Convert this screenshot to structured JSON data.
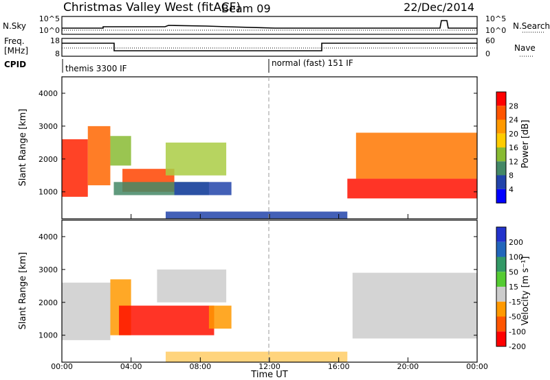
{
  "header": {
    "title": "Christmas Valley West (fitACF)",
    "beam": "Beam 09",
    "date": "22/Dec/2014"
  },
  "sky_panel": {
    "left_label": "N.Sky",
    "left_ticks": [
      "10^5",
      "10^0"
    ],
    "right_label": "N.Search",
    "right_ticks": [
      "10^5",
      "10^0"
    ]
  },
  "freq_panel": {
    "left_label_line1": "Freq.",
    "left_label_line2": "[MHz]",
    "left_ticks": [
      "18",
      "8"
    ],
    "right_label": "Nave",
    "right_ticks": [
      "60",
      "0"
    ]
  },
  "cpid_panel": {
    "label": "CPID",
    "modes": [
      {
        "name": "themis 3300 IF",
        "start_hour": 0
      },
      {
        "name": "normal (fast) 151 IF",
        "start_hour": 12
      }
    ]
  },
  "chart_data": [
    {
      "type": "heatmap",
      "name": "power",
      "ylabel": "Slant Range [km]",
      "ylim": [
        180,
        4500
      ],
      "yticks": [
        "1000",
        "2000",
        "3000",
        "4000"
      ],
      "xlim_hours": [
        0,
        24
      ],
      "colorbar": {
        "label": "Power [dB]",
        "ticks": [
          "28",
          "24",
          "20",
          "16",
          "12",
          "8",
          "4"
        ],
        "colors": [
          "#ff0000",
          "#ff5500",
          "#ff9900",
          "#ffcc00",
          "#88bb33",
          "#448866",
          "#2244aa",
          "#0000ff"
        ]
      },
      "regions": [
        {
          "t": [
            0.0,
            1.5
          ],
          "r": [
            850,
            2600
          ],
          "color": "#ff2200"
        },
        {
          "t": [
            1.5,
            2.8
          ],
          "r": [
            1200,
            3000
          ],
          "color": "#ff6600"
        },
        {
          "t": [
            2.8,
            4.0
          ],
          "r": [
            1800,
            2700
          ],
          "color": "#88bb33"
        },
        {
          "t": [
            3.5,
            6.5
          ],
          "r": [
            1000,
            1700
          ],
          "color": "#ff4400"
        },
        {
          "t": [
            3.0,
            8.5
          ],
          "r": [
            900,
            1300
          ],
          "color": "#448866"
        },
        {
          "t": [
            6.0,
            9.5
          ],
          "r": [
            1500,
            2500
          ],
          "color": "#aacc44"
        },
        {
          "t": [
            6.5,
            9.8
          ],
          "r": [
            900,
            1300
          ],
          "color": "#2244aa"
        },
        {
          "t": [
            16.5,
            24.0
          ],
          "r": [
            800,
            1400
          ],
          "color": "#ff1100"
        },
        {
          "t": [
            17.0,
            24.0
          ],
          "r": [
            1400,
            2800
          ],
          "color": "#ff7700"
        },
        {
          "t": [
            6.0,
            16.5
          ],
          "r": [
            180,
            400
          ],
          "color": "#2244aa"
        }
      ]
    },
    {
      "type": "heatmap",
      "name": "velocity",
      "ylabel": "Slant Range [km]",
      "ylim": [
        180,
        4500
      ],
      "yticks": [
        "1000",
        "2000",
        "3000",
        "4000"
      ],
      "xlim_hours": [
        0,
        24
      ],
      "xticks": [
        "00:00",
        "04:00",
        "08:00",
        "12:00",
        "16:00",
        "20:00",
        "00:00"
      ],
      "xlabel": "Time UT",
      "colorbar": {
        "label": "Velocity [m s⁻¹]",
        "ticks": [
          "200",
          "100",
          "50",
          "15",
          "-15",
          "-50",
          "-100",
          "-200"
        ],
        "colors": [
          "#2233cc",
          "#2266bb",
          "#339966",
          "#55cc33",
          "#cccccc",
          "#ff9900",
          "#ff5500",
          "#ff0000"
        ]
      },
      "regions": [
        {
          "t": [
            0.0,
            2.8
          ],
          "r": [
            850,
            2600
          ],
          "color": "#cccccc"
        },
        {
          "t": [
            2.8,
            4.0
          ],
          "r": [
            1000,
            2700
          ],
          "color": "#ff9900"
        },
        {
          "t": [
            3.3,
            8.8
          ],
          "r": [
            1000,
            1900
          ],
          "color": "#ff1100"
        },
        {
          "t": [
            8.5,
            9.8
          ],
          "r": [
            1200,
            1900
          ],
          "color": "#ff9900"
        },
        {
          "t": [
            5.5,
            9.5
          ],
          "r": [
            2000,
            3000
          ],
          "color": "#cccccc"
        },
        {
          "t": [
            16.8,
            24.0
          ],
          "r": [
            900,
            2900
          ],
          "color": "#cccccc"
        },
        {
          "t": [
            6.0,
            16.5
          ],
          "r": [
            180,
            500
          ],
          "color": "#ffcc66"
        }
      ]
    }
  ]
}
